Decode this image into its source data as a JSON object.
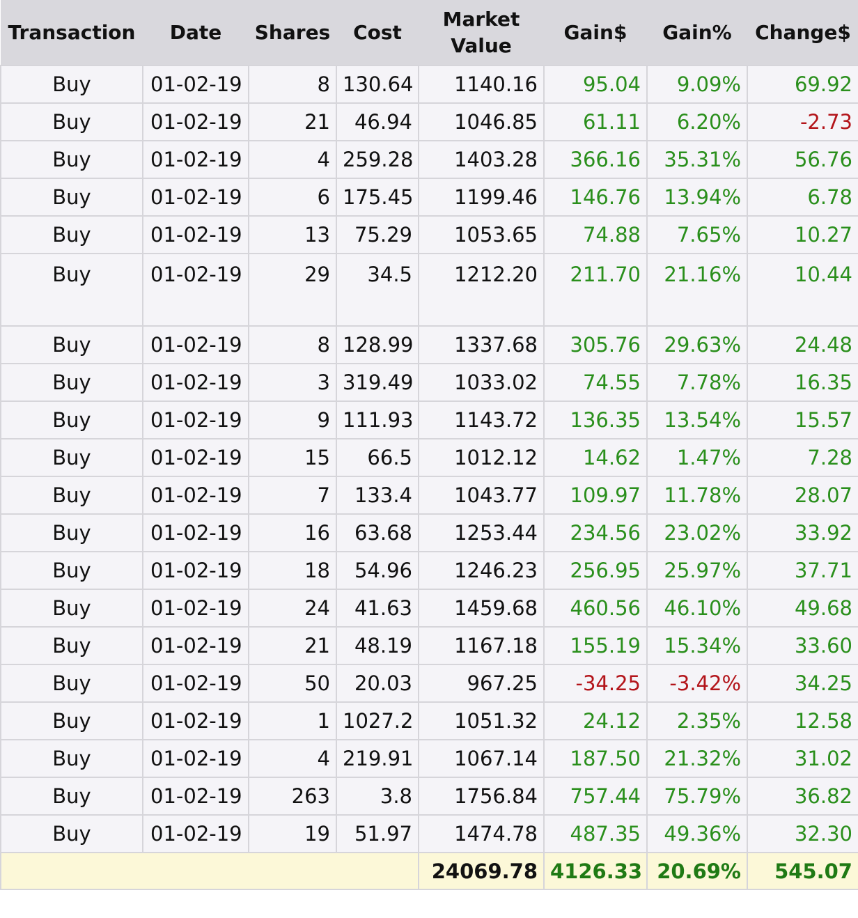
{
  "headers": [
    "Transaction",
    "Date",
    "Shares",
    "Cost",
    "Market Value",
    "Gain$",
    "Gain%",
    "Change$"
  ],
  "rows": [
    {
      "transaction": "Buy",
      "date": "01-02-19",
      "shares": "8",
      "cost": "130.64",
      "market_value": "1140.16",
      "gain": "95.04",
      "gain_pct": "9.09%",
      "change": "69.92"
    },
    {
      "transaction": "Buy",
      "date": "01-02-19",
      "shares": "21",
      "cost": "46.94",
      "market_value": "1046.85",
      "gain": "61.11",
      "gain_pct": "6.20%",
      "change": "-2.73"
    },
    {
      "transaction": "Buy",
      "date": "01-02-19",
      "shares": "4",
      "cost": "259.28",
      "market_value": "1403.28",
      "gain": "366.16",
      "gain_pct": "35.31%",
      "change": "56.76"
    },
    {
      "transaction": "Buy",
      "date": "01-02-19",
      "shares": "6",
      "cost": "175.45",
      "market_value": "1199.46",
      "gain": "146.76",
      "gain_pct": "13.94%",
      "change": "6.78"
    },
    {
      "transaction": "Buy",
      "date": "01-02-19",
      "shares": "13",
      "cost": "75.29",
      "market_value": "1053.65",
      "gain": "74.88",
      "gain_pct": "7.65%",
      "change": "10.27"
    },
    {
      "transaction": "Buy",
      "date": "01-02-19",
      "shares": "29",
      "cost": "34.5",
      "market_value": "1212.20",
      "gain": "211.70",
      "gain_pct": "21.16%",
      "change": "10.44"
    },
    {
      "transaction": "Buy",
      "date": "01-02-19",
      "shares": "8",
      "cost": "128.99",
      "market_value": "1337.68",
      "gain": "305.76",
      "gain_pct": "29.63%",
      "change": "24.48"
    },
    {
      "transaction": "Buy",
      "date": "01-02-19",
      "shares": "3",
      "cost": "319.49",
      "market_value": "1033.02",
      "gain": "74.55",
      "gain_pct": "7.78%",
      "change": "16.35"
    },
    {
      "transaction": "Buy",
      "date": "01-02-19",
      "shares": "9",
      "cost": "111.93",
      "market_value": "1143.72",
      "gain": "136.35",
      "gain_pct": "13.54%",
      "change": "15.57"
    },
    {
      "transaction": "Buy",
      "date": "01-02-19",
      "shares": "15",
      "cost": "66.5",
      "market_value": "1012.12",
      "gain": "14.62",
      "gain_pct": "1.47%",
      "change": "7.28"
    },
    {
      "transaction": "Buy",
      "date": "01-02-19",
      "shares": "7",
      "cost": "133.4",
      "market_value": "1043.77",
      "gain": "109.97",
      "gain_pct": "11.78%",
      "change": "28.07"
    },
    {
      "transaction": "Buy",
      "date": "01-02-19",
      "shares": "16",
      "cost": "63.68",
      "market_value": "1253.44",
      "gain": "234.56",
      "gain_pct": "23.02%",
      "change": "33.92"
    },
    {
      "transaction": "Buy",
      "date": "01-02-19",
      "shares": "18",
      "cost": "54.96",
      "market_value": "1246.23",
      "gain": "256.95",
      "gain_pct": "25.97%",
      "change": "37.71"
    },
    {
      "transaction": "Buy",
      "date": "01-02-19",
      "shares": "24",
      "cost": "41.63",
      "market_value": "1459.68",
      "gain": "460.56",
      "gain_pct": "46.10%",
      "change": "49.68"
    },
    {
      "transaction": "Buy",
      "date": "01-02-19",
      "shares": "21",
      "cost": "48.19",
      "market_value": "1167.18",
      "gain": "155.19",
      "gain_pct": "15.34%",
      "change": "33.60"
    },
    {
      "transaction": "Buy",
      "date": "01-02-19",
      "shares": "50",
      "cost": "20.03",
      "market_value": "967.25",
      "gain": "-34.25",
      "gain_pct": "-3.42%",
      "change": "34.25"
    },
    {
      "transaction": "Buy",
      "date": "01-02-19",
      "shares": "1",
      "cost": "1027.2",
      "market_value": "1051.32",
      "gain": "24.12",
      "gain_pct": "2.35%",
      "change": "12.58"
    },
    {
      "transaction": "Buy",
      "date": "01-02-19",
      "shares": "4",
      "cost": "219.91",
      "market_value": "1067.14",
      "gain": "187.50",
      "gain_pct": "21.32%",
      "change": "31.02"
    },
    {
      "transaction": "Buy",
      "date": "01-02-19",
      "shares": "263",
      "cost": "3.8",
      "market_value": "1756.84",
      "gain": "757.44",
      "gain_pct": "75.79%",
      "change": "36.82"
    },
    {
      "transaction": "Buy",
      "date": "01-02-19",
      "shares": "19",
      "cost": "51.97",
      "market_value": "1474.78",
      "gain": "487.35",
      "gain_pct": "49.36%",
      "change": "32.30"
    }
  ],
  "totals": {
    "market_value": "24069.78",
    "gain": "4126.33",
    "gain_pct": "20.69%",
    "change": "545.07"
  },
  "colors": {
    "positive": "#2a8f1c",
    "negative": "#b3141a",
    "header_bg": "#d9d8dd",
    "row_bg": "#f5f4f8",
    "totals_bg": "#fcf8d8"
  }
}
